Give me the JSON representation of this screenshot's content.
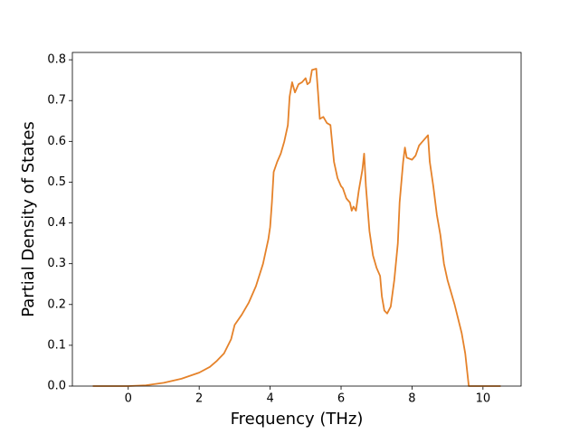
{
  "chart_data": {
    "type": "line",
    "xlabel": "Frequency (THz)",
    "ylabel": "Partial Density of States",
    "x": [
      -1.0,
      0,
      0.5,
      1.0,
      1.5,
      2.0,
      2.3,
      2.5,
      2.7,
      2.9,
      3.0,
      3.2,
      3.4,
      3.6,
      3.8,
      3.95,
      4.0,
      4.05,
      4.1,
      4.2,
      4.3,
      4.4,
      4.5,
      4.55,
      4.62,
      4.7,
      4.8,
      4.9,
      5.0,
      5.05,
      5.12,
      5.18,
      5.3,
      5.35,
      5.4,
      5.5,
      5.6,
      5.7,
      5.8,
      5.9,
      6.0,
      6.05,
      6.15,
      6.25,
      6.3,
      6.35,
      6.42,
      6.5,
      6.6,
      6.65,
      6.7,
      6.8,
      6.9,
      7.0,
      7.1,
      7.15,
      7.22,
      7.3,
      7.4,
      7.5,
      7.6,
      7.65,
      7.75,
      7.8,
      7.85,
      8.0,
      8.1,
      8.2,
      8.3,
      8.45,
      8.5,
      8.6,
      8.7,
      8.8,
      8.9,
      9.0,
      9.2,
      9.4,
      9.5,
      9.6,
      10.5
    ],
    "values": [
      0,
      0,
      0.002,
      0.008,
      0.018,
      0.033,
      0.047,
      0.062,
      0.08,
      0.115,
      0.15,
      0.175,
      0.205,
      0.245,
      0.3,
      0.36,
      0.39,
      0.45,
      0.525,
      0.55,
      0.57,
      0.6,
      0.64,
      0.71,
      0.745,
      0.72,
      0.74,
      0.745,
      0.755,
      0.74,
      0.745,
      0.775,
      0.778,
      0.72,
      0.655,
      0.66,
      0.645,
      0.64,
      0.55,
      0.51,
      0.49,
      0.485,
      0.46,
      0.45,
      0.43,
      0.44,
      0.43,
      0.48,
      0.53,
      0.57,
      0.49,
      0.38,
      0.32,
      0.29,
      0.27,
      0.22,
      0.185,
      0.178,
      0.195,
      0.26,
      0.35,
      0.45,
      0.55,
      0.585,
      0.56,
      0.555,
      0.565,
      0.59,
      0.6,
      0.615,
      0.55,
      0.49,
      0.42,
      0.37,
      0.3,
      0.26,
      0.2,
      0.13,
      0.08,
      0,
      0
    ],
    "color": "#e5822a",
    "xlim": [
      -1.575,
      11.075
    ],
    "ylim": [
      0,
      0.818
    ],
    "xticks": [
      0,
      2,
      4,
      6,
      8,
      10
    ],
    "yticks": [
      {
        "value": 0,
        "label": "0.0"
      },
      0.1,
      0.2,
      0.3,
      0.4,
      0.5,
      0.6,
      0.7,
      0.8
    ]
  }
}
